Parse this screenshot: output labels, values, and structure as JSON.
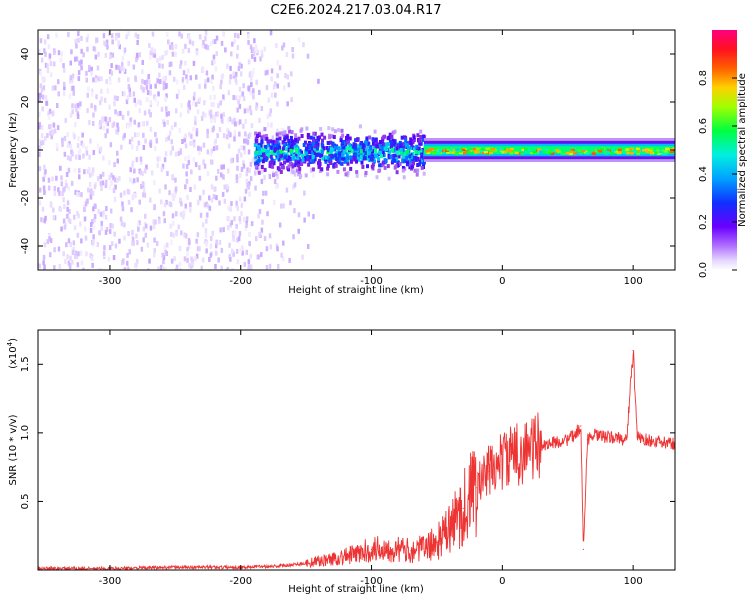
{
  "title": "C2E6.2024.217.03.04.R17",
  "chart_data": [
    {
      "type": "heatmap",
      "xlabel": "Height of straight line (km)",
      "ylabel": "Frequency (Hz)",
      "xlim": [
        -355,
        132
      ],
      "ylim": [
        -50,
        50
      ],
      "xticks": [
        -300,
        -200,
        -100,
        0,
        100
      ],
      "yticks": [
        -40,
        -20,
        0,
        20,
        40
      ],
      "colorbar": {
        "label": "Normalized spectral amplitude",
        "range": [
          0,
          1
        ],
        "ticks": [
          "0.0",
          "0.2",
          "0.4",
          "0.6",
          "0.8"
        ],
        "colors": [
          "#ffffff",
          "#e6d6ff",
          "#c8a8ff",
          "#8a2be2",
          "#4b00ff",
          "#0050ff",
          "#00bfff",
          "#00ffb0",
          "#00ff20",
          "#d8ff00",
          "#ffb000",
          "#ff2a00",
          "#ff0080"
        ]
      },
      "regions": [
        {
          "x_range": [
            -355,
            -160
          ],
          "freq_range": [
            -50,
            50
          ],
          "amplitude": 0.1,
          "pattern": "scattered noise"
        },
        {
          "x_range": [
            -190,
            -60
          ],
          "freq_range": [
            -12,
            12
          ],
          "amplitude": 0.4,
          "pattern": "broad signal band"
        },
        {
          "x_range": [
            -60,
            132
          ],
          "freq_range": [
            -3,
            3
          ],
          "amplitude": 0.75,
          "pattern": "narrow signal band"
        }
      ],
      "grid": false
    },
    {
      "type": "line",
      "xlabel": "Height of straight line (km)",
      "ylabel": "SNR (10 * v/v)",
      "multiplier_label": "(x10",
      "multiplier_exp": "4",
      "multiplier_close": ")",
      "xlim": [
        -355,
        132
      ],
      "ylim": [
        0,
        1.75
      ],
      "xticks": [
        -300,
        -200,
        -100,
        0,
        100
      ],
      "yticks": [
        "0.5",
        "1.0",
        "1.5"
      ],
      "series": [
        {
          "color": "#ee3333",
          "x": [
            -355,
            -300,
            -250,
            -200,
            -170,
            -150,
            -130,
            -110,
            -100,
            -90,
            -80,
            -70,
            -60,
            -50,
            -40,
            -30,
            -20,
            -10,
            0,
            10,
            20,
            30,
            40,
            50,
            55,
            60,
            62,
            65,
            70,
            80,
            90,
            95,
            100,
            103,
            110,
            120,
            132
          ],
          "y": [
            0.01,
            0.01,
            0.02,
            0.02,
            0.03,
            0.05,
            0.08,
            0.12,
            0.15,
            0.16,
            0.15,
            0.14,
            0.16,
            0.2,
            0.3,
            0.45,
            0.6,
            0.72,
            0.8,
            0.84,
            0.88,
            0.91,
            0.93,
            0.95,
            0.98,
            1.05,
            0.15,
            0.95,
            0.98,
            0.97,
            0.96,
            0.95,
            1.6,
            0.97,
            0.95,
            0.93,
            0.92
          ]
        }
      ],
      "grid": false
    }
  ]
}
